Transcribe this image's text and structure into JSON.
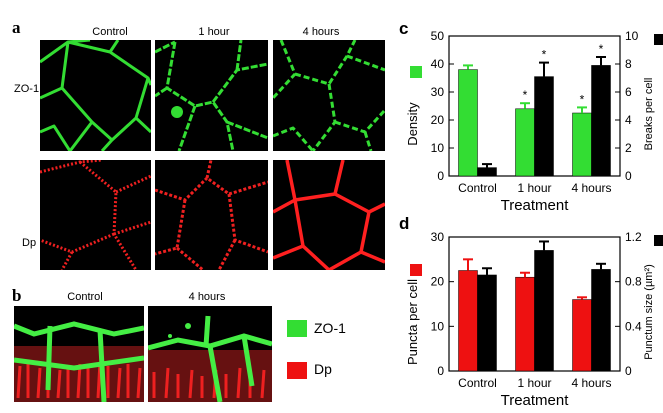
{
  "figure": {
    "panel_a": {
      "letter": "a",
      "columns": [
        "Control",
        "1 hour",
        "4 hours"
      ],
      "rows": [
        "ZO-1",
        "Dp"
      ]
    },
    "panel_b": {
      "letter": "b",
      "columns": [
        "Control",
        "4 hours"
      ],
      "legend": [
        {
          "label": "ZO-1",
          "color": "#33dd33"
        },
        {
          "label": "Dp",
          "color": "#ee1111"
        }
      ]
    }
  },
  "chart_data": [
    {
      "panel": "c",
      "type": "bar",
      "categories": [
        "Control",
        "1 hour",
        "4 hours"
      ],
      "xlabel": "Treatment",
      "series": [
        {
          "axis": "left",
          "color": "#33dd33",
          "values": [
            38,
            24,
            22.5
          ],
          "errors": [
            1.5,
            2,
            2
          ]
        },
        {
          "axis": "right",
          "color": "#000000",
          "values": [
            0.6,
            7.1,
            7.9
          ],
          "errors": [
            0.25,
            1,
            0.6
          ]
        }
      ],
      "left_axis": {
        "label": "Density",
        "ylim": [
          0,
          50
        ],
        "ticks": [
          "0",
          "10",
          "20",
          "30",
          "40",
          "50"
        ]
      },
      "right_axis": {
        "label": "Breaks per cell",
        "ylim": [
          0,
          10
        ],
        "ticks": [
          "0",
          "2",
          "4",
          "6",
          "8",
          "10"
        ]
      },
      "annotations": [
        "*",
        "*",
        "*",
        "*"
      ]
    },
    {
      "panel": "d",
      "type": "bar",
      "categories": [
        "Control",
        "1 hour",
        "4 hours"
      ],
      "xlabel": "Treatment",
      "series": [
        {
          "axis": "left",
          "color": "#ee1111",
          "values": [
            22.5,
            21,
            16
          ],
          "errors": [
            2.5,
            1,
            0.5
          ]
        },
        {
          "axis": "right",
          "color": "#000000",
          "values": [
            0.86,
            1.08,
            0.91
          ],
          "errors": [
            0.06,
            0.08,
            0.05
          ]
        }
      ],
      "left_axis": {
        "label": "Puncta per cell",
        "ylim": [
          0,
          30
        ],
        "ticks": [
          "0",
          "10",
          "20",
          "30"
        ]
      },
      "right_axis": {
        "label": "Punctum size (µm²)",
        "ylim": [
          0,
          1.2
        ],
        "ticks": [
          "0",
          "0.4",
          "0.8",
          "1.2"
        ]
      }
    }
  ]
}
